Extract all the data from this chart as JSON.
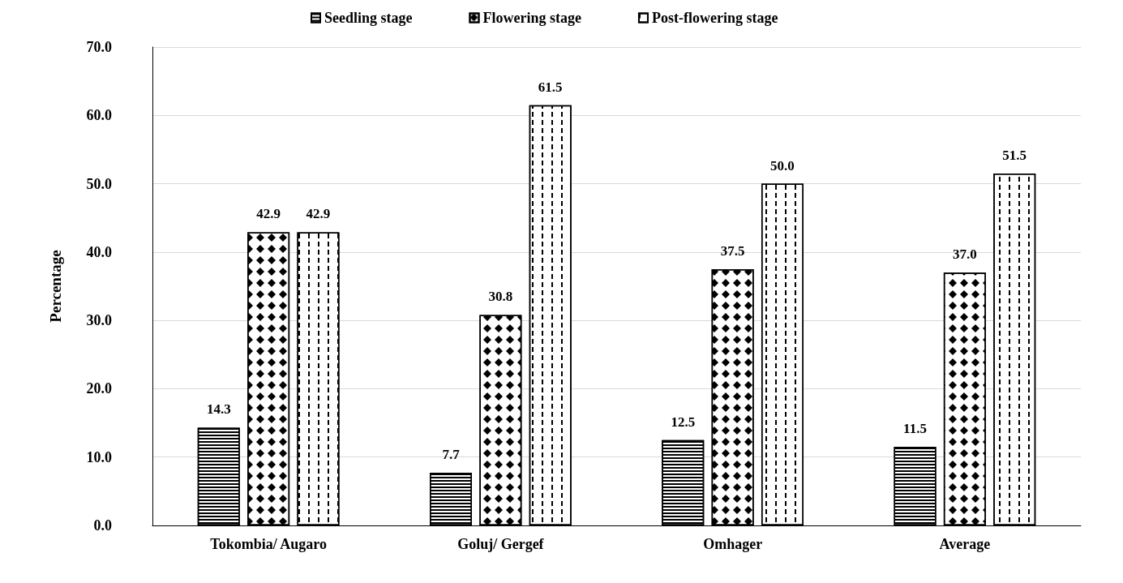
{
  "chart_data": {
    "type": "bar",
    "ylabel": "Percentage",
    "categories": [
      "Tokombia/ Augaro",
      "Goluj/ Gergef",
      "Omhager",
      "Average"
    ],
    "series": [
      {
        "name": "Seedling stage",
        "color": "#000000",
        "values": [
          14.3,
          7.7,
          12.5,
          11.5
        ],
        "value_labels": [
          "14.3",
          "7.7",
          "12.5",
          "11.5"
        ]
      },
      {
        "name": "Flowering stage",
        "color": "#000000",
        "values": [
          42.9,
          30.8,
          37.5,
          37.0
        ],
        "value_labels": [
          "42.9",
          "30.8",
          "37.5",
          "37.0"
        ]
      },
      {
        "name": "Post-flowering stage",
        "color": "#000000",
        "values": [
          42.9,
          61.5,
          50.0,
          51.5
        ],
        "value_labels": [
          "42.9",
          "61.5",
          "50.0",
          "51.5"
        ]
      }
    ],
    "ylim": [
      0,
      70
    ],
    "yticks": [
      {
        "value": 0,
        "label": "0.0"
      },
      {
        "value": 10,
        "label": "10.0"
      },
      {
        "value": 20,
        "label": "20.0"
      },
      {
        "value": 30,
        "label": "30.0"
      },
      {
        "value": 40,
        "label": "40.0"
      },
      {
        "value": 50,
        "label": "50.0"
      },
      {
        "value": 60,
        "label": "60.0"
      },
      {
        "value": 70,
        "label": "70.0"
      }
    ],
    "grid": "y",
    "legend": "top"
  }
}
